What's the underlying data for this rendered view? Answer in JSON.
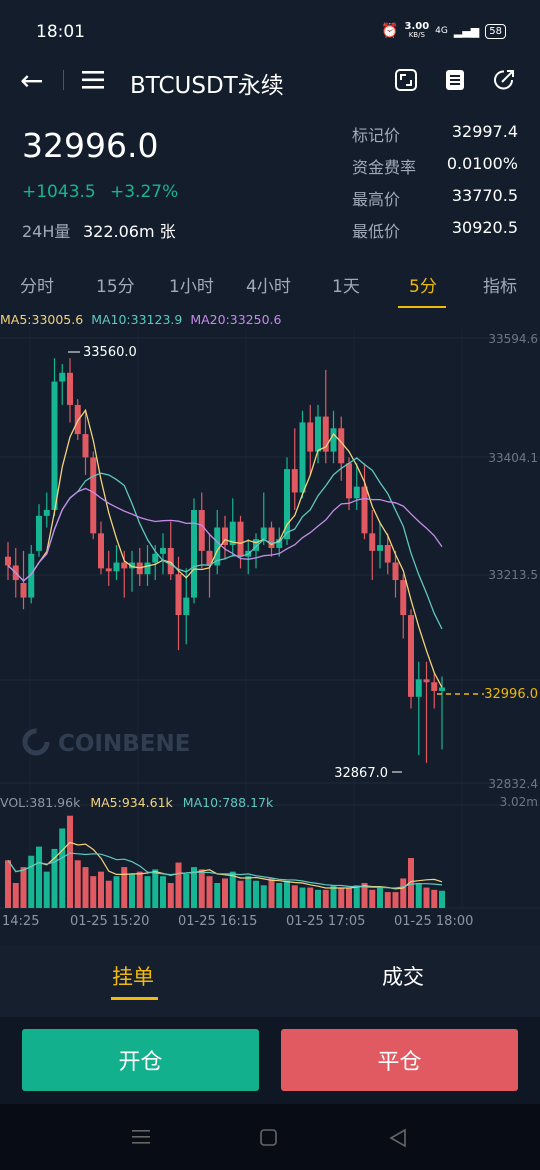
{
  "status": {
    "time": "18:01",
    "speed": "3.00",
    "speed_unit": "KB/S",
    "network": "4G",
    "battery": "58"
  },
  "header": {
    "title": "BTCUSDT永续"
  },
  "ticker": {
    "last_price": "32996.0",
    "change": "+1043.5",
    "change_pct": "+3.27%",
    "volume_label": "24H量",
    "volume_value": "322.06m 张",
    "stats": [
      {
        "label": "标记价",
        "value": "32997.4"
      },
      {
        "label": "资金费率",
        "value": "0.0100%"
      },
      {
        "label": "最高价",
        "value": "33770.5"
      },
      {
        "label": "最低价",
        "value": "30920.5"
      }
    ]
  },
  "timeframes": [
    "分时",
    "15分",
    "1小时",
    "4小时",
    "1天",
    "5分",
    "指标"
  ],
  "active_timeframe": "5分",
  "indicators": {
    "ma5": "MA5:33005.6",
    "ma10": "MA10:33123.9",
    "ma20": "MA20:33250.6",
    "vol": "VOL:381.96k",
    "vol_ma5": "MA5:934.61k",
    "vol_ma10": "MA10:788.17k"
  },
  "watermark": "COINBENE",
  "chart_data": {
    "type": "candlestick",
    "price_axis_ticks": [
      "33594.6",
      "33404.1",
      "33213.5",
      "32832.4"
    ],
    "volume_axis_max": "3.02m",
    "last_price_label": "32996.0",
    "high_marker": "33560.0",
    "low_marker": "32867.0",
    "x_ticks": [
      "14:25",
      "01-25 15:20",
      "01-25 16:15",
      "01-25 17:05",
      "01-25 18:00"
    ],
    "candles": [
      {
        "o": 33220,
        "h": 33245,
        "l": 33180,
        "c": 33205
      },
      {
        "o": 33205,
        "h": 33235,
        "l": 33150,
        "c": 33180
      },
      {
        "o": 33175,
        "h": 33230,
        "l": 33130,
        "c": 33150
      },
      {
        "o": 33150,
        "h": 33240,
        "l": 33140,
        "c": 33225
      },
      {
        "o": 33230,
        "h": 33310,
        "l": 33220,
        "c": 33290
      },
      {
        "o": 33290,
        "h": 33330,
        "l": 33270,
        "c": 33300
      },
      {
        "o": 33300,
        "h": 33560,
        "l": 33290,
        "c": 33520
      },
      {
        "o": 33520,
        "h": 33550,
        "l": 33480,
        "c": 33535
      },
      {
        "o": 33535,
        "h": 33560,
        "l": 33450,
        "c": 33480
      },
      {
        "o": 33480,
        "h": 33490,
        "l": 33420,
        "c": 33430
      },
      {
        "o": 33430,
        "h": 33470,
        "l": 33360,
        "c": 33390
      },
      {
        "o": 33390,
        "h": 33400,
        "l": 33250,
        "c": 33260
      },
      {
        "o": 33260,
        "h": 33280,
        "l": 33190,
        "c": 33200
      },
      {
        "o": 33200,
        "h": 33230,
        "l": 33170,
        "c": 33195
      },
      {
        "o": 33195,
        "h": 33240,
        "l": 33180,
        "c": 33210
      },
      {
        "o": 33210,
        "h": 33230,
        "l": 33150,
        "c": 33200
      },
      {
        "o": 33200,
        "h": 33230,
        "l": 33160,
        "c": 33210
      },
      {
        "o": 33210,
        "h": 33235,
        "l": 33170,
        "c": 33190
      },
      {
        "o": 33190,
        "h": 33240,
        "l": 33170,
        "c": 33210
      },
      {
        "o": 33210,
        "h": 33240,
        "l": 33180,
        "c": 33225
      },
      {
        "o": 33225,
        "h": 33260,
        "l": 33190,
        "c": 33235
      },
      {
        "o": 33235,
        "h": 33280,
        "l": 33180,
        "c": 33190
      },
      {
        "o": 33190,
        "h": 33220,
        "l": 33060,
        "c": 33120
      },
      {
        "o": 33120,
        "h": 33200,
        "l": 33070,
        "c": 33150
      },
      {
        "o": 33150,
        "h": 33320,
        "l": 33140,
        "c": 33300
      },
      {
        "o": 33300,
        "h": 33330,
        "l": 33200,
        "c": 33230
      },
      {
        "o": 33230,
        "h": 33260,
        "l": 33150,
        "c": 33205
      },
      {
        "o": 33205,
        "h": 33300,
        "l": 33190,
        "c": 33270
      },
      {
        "o": 33270,
        "h": 33290,
        "l": 33215,
        "c": 33240
      },
      {
        "o": 33240,
        "h": 33320,
        "l": 33220,
        "c": 33280
      },
      {
        "o": 33280,
        "h": 33290,
        "l": 33200,
        "c": 33220
      },
      {
        "o": 33220,
        "h": 33250,
        "l": 33190,
        "c": 33230
      },
      {
        "o": 33230,
        "h": 33260,
        "l": 33200,
        "c": 33250
      },
      {
        "o": 33250,
        "h": 33330,
        "l": 33240,
        "c": 33270
      },
      {
        "o": 33270,
        "h": 33280,
        "l": 33220,
        "c": 33235
      },
      {
        "o": 33235,
        "h": 33270,
        "l": 33220,
        "c": 33250
      },
      {
        "o": 33250,
        "h": 33390,
        "l": 33240,
        "c": 33370
      },
      {
        "o": 33370,
        "h": 33440,
        "l": 33300,
        "c": 33330
      },
      {
        "o": 33330,
        "h": 33470,
        "l": 33320,
        "c": 33450
      },
      {
        "o": 33450,
        "h": 33480,
        "l": 33360,
        "c": 33400
      },
      {
        "o": 33400,
        "h": 33480,
        "l": 33380,
        "c": 33460
      },
      {
        "o": 33460,
        "h": 33540,
        "l": 33380,
        "c": 33400
      },
      {
        "o": 33400,
        "h": 33470,
        "l": 33380,
        "c": 33440
      },
      {
        "o": 33440,
        "h": 33460,
        "l": 33350,
        "c": 33380
      },
      {
        "o": 33380,
        "h": 33390,
        "l": 33300,
        "c": 33320
      },
      {
        "o": 33320,
        "h": 33380,
        "l": 33300,
        "c": 33340
      },
      {
        "o": 33340,
        "h": 33380,
        "l": 33250,
        "c": 33260
      },
      {
        "o": 33260,
        "h": 33300,
        "l": 33180,
        "c": 33230
      },
      {
        "o": 33230,
        "h": 33280,
        "l": 33200,
        "c": 33240
      },
      {
        "o": 33240,
        "h": 33260,
        "l": 33190,
        "c": 33210
      },
      {
        "o": 33210,
        "h": 33230,
        "l": 33150,
        "c": 33180
      },
      {
        "o": 33180,
        "h": 33190,
        "l": 33080,
        "c": 33120
      },
      {
        "o": 33120,
        "h": 33130,
        "l": 32960,
        "c": 32980
      },
      {
        "o": 32980,
        "h": 33040,
        "l": 32880,
        "c": 33010
      },
      {
        "o": 33010,
        "h": 33040,
        "l": 32867,
        "c": 33005
      },
      {
        "o": 33005,
        "h": 33020,
        "l": 32960,
        "c": 32990
      },
      {
        "o": 32990,
        "h": 33015,
        "l": 32890,
        "c": 32996
      }
    ],
    "volume": [
      1.05,
      0.55,
      0.9,
      1.15,
      1.35,
      0.8,
      1.3,
      1.75,
      2.03,
      1.05,
      0.9,
      0.7,
      0.8,
      0.6,
      0.7,
      0.9,
      0.75,
      0.8,
      0.7,
      0.85,
      0.7,
      0.55,
      1.0,
      0.75,
      0.9,
      0.85,
      0.7,
      0.55,
      0.65,
      0.8,
      0.6,
      0.7,
      0.6,
      0.5,
      0.65,
      0.55,
      0.6,
      0.5,
      0.45,
      0.45,
      0.4,
      0.4,
      0.5,
      0.45,
      0.45,
      0.5,
      0.55,
      0.4,
      0.45,
      0.35,
      0.35,
      0.65,
      1.1,
      0.55,
      0.45,
      0.4,
      0.38
    ]
  },
  "bottom_tabs": {
    "orders": "挂单",
    "trades": "成交"
  },
  "actions": {
    "open": "开仓",
    "close": "平仓"
  }
}
